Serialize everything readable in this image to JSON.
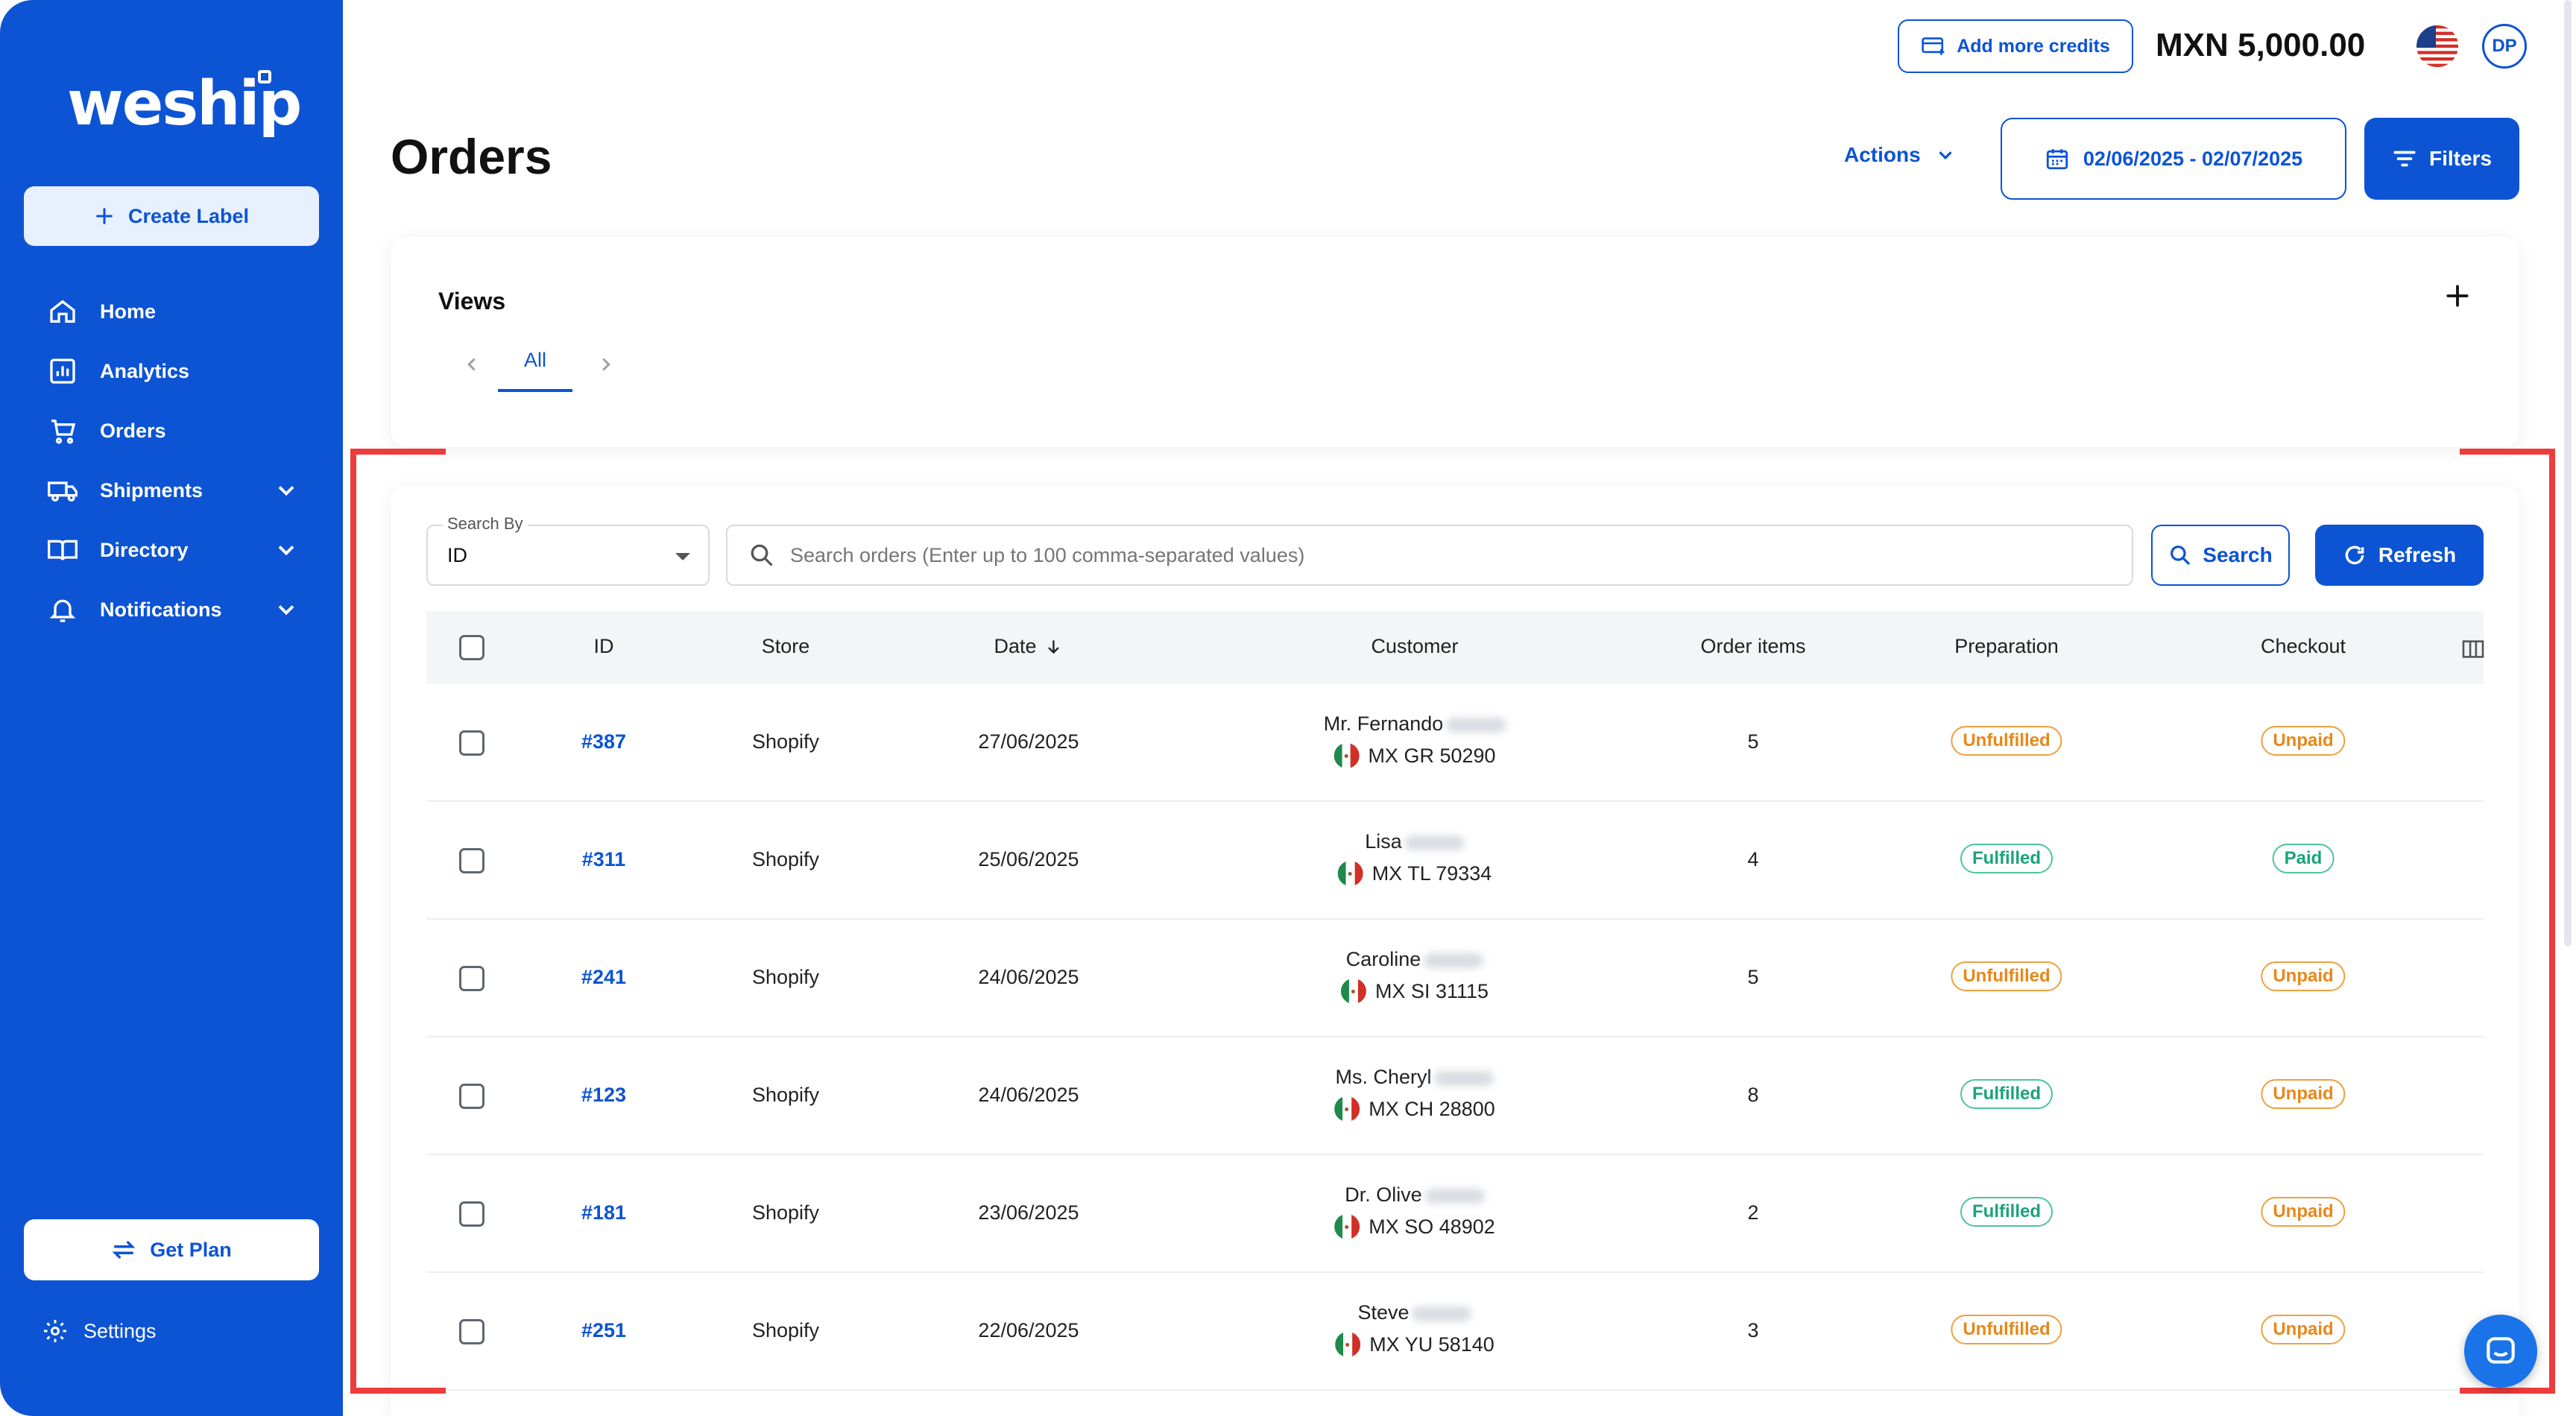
{
  "sidebar": {
    "logo": "weship",
    "create_label": "Create Label",
    "nav": [
      {
        "label": "Home",
        "icon": "home-icon"
      },
      {
        "label": "Analytics",
        "icon": "analytics-icon"
      },
      {
        "label": "Orders",
        "icon": "cart-icon"
      },
      {
        "label": "Shipments",
        "icon": "truck-icon"
      },
      {
        "label": "Directory",
        "icon": "book-icon"
      },
      {
        "label": "Notifications",
        "icon": "bell-icon"
      }
    ],
    "get_plan": "Get Plan",
    "settings": "Settings"
  },
  "header": {
    "add_credits": "Add more credits",
    "balance": "MXN 5,000.00",
    "avatar": "DP"
  },
  "page": {
    "title": "Orders",
    "actions": "Actions",
    "date_range": "02/06/2025 - 02/07/2025",
    "filters": "Filters"
  },
  "views": {
    "title": "Views",
    "tabs": [
      "All"
    ]
  },
  "search": {
    "search_by_label": "Search By",
    "search_by_value": "ID",
    "placeholder": "Search orders (Enter up to 100 comma-separated values)",
    "search_btn": "Search",
    "refresh_btn": "Refresh"
  },
  "table": {
    "columns": [
      "ID",
      "Store",
      "Date",
      "Customer",
      "Order items",
      "Preparation",
      "Checkout"
    ],
    "rows": [
      {
        "id": "#387",
        "store": "Shopify",
        "date": "27/06/2025",
        "customer": "Mr. Fernando",
        "location": "MX GR 50290",
        "items": "5",
        "preparation": "Unfulfilled",
        "checkout": "Unpaid"
      },
      {
        "id": "#311",
        "store": "Shopify",
        "date": "25/06/2025",
        "customer": "Lisa",
        "location": "MX TL 79334",
        "items": "4",
        "preparation": "Fulfilled",
        "checkout": "Paid"
      },
      {
        "id": "#241",
        "store": "Shopify",
        "date": "24/06/2025",
        "customer": "Caroline",
        "location": "MX SI 31115",
        "items": "5",
        "preparation": "Unfulfilled",
        "checkout": "Unpaid"
      },
      {
        "id": "#123",
        "store": "Shopify",
        "date": "24/06/2025",
        "customer": "Ms. Cheryl",
        "location": "MX CH 28800",
        "items": "8",
        "preparation": "Fulfilled",
        "checkout": "Unpaid"
      },
      {
        "id": "#181",
        "store": "Shopify",
        "date": "23/06/2025",
        "customer": "Dr. Olive",
        "location": "MX SO 48902",
        "items": "2",
        "preparation": "Fulfilled",
        "checkout": "Unpaid"
      },
      {
        "id": "#251",
        "store": "Shopify",
        "date": "22/06/2025",
        "customer": "Steve",
        "location": "MX YU 58140",
        "items": "3",
        "preparation": "Unfulfilled",
        "checkout": "Unpaid"
      }
    ]
  },
  "colors": {
    "brand": "#0c54d4",
    "highlight": "#ee3b3b",
    "warning": "#e8871a",
    "success": "#1aa37a"
  }
}
